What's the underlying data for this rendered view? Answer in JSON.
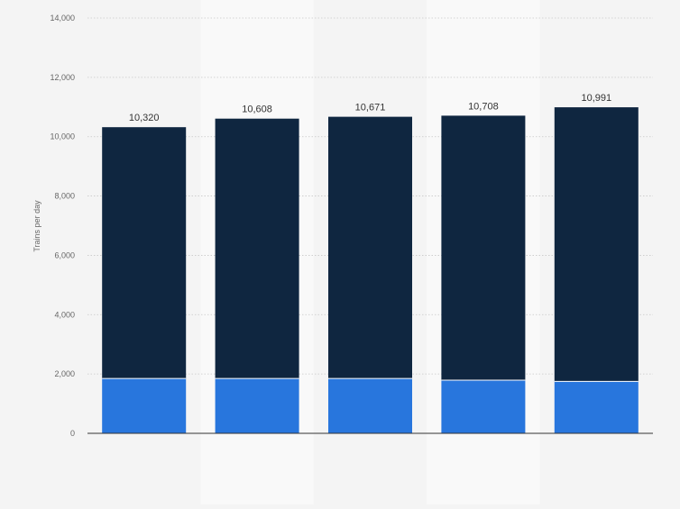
{
  "chart_data": {
    "type": "bar",
    "stacked": true,
    "title": "",
    "xlabel": "",
    "ylabel": "Trains per day",
    "ylim": [
      0,
      14000
    ],
    "yticks": [
      0,
      2000,
      4000,
      6000,
      8000,
      10000,
      12000,
      14000
    ],
    "ytick_labels": [
      "0",
      "2,000",
      "4,000",
      "6,000",
      "8,000",
      "10,000",
      "12,000",
      "14,000"
    ],
    "categories": [
      "",
      "",
      "",
      "",
      ""
    ],
    "series": [
      {
        "name": "",
        "color": "#2876dd",
        "values": [
          1850,
          1850,
          1850,
          1790,
          1750
        ]
      },
      {
        "name": "",
        "color": "#0f2640",
        "values": [
          8470,
          8758,
          8821,
          8918,
          9241
        ]
      }
    ],
    "totals": [
      10320,
      10608,
      10671,
      10708,
      10991
    ],
    "total_labels": [
      "10,320",
      "10,608",
      "10,671",
      "10,708",
      "10,991"
    ],
    "grid": true,
    "legend": "none",
    "colors": {
      "background": "#f4f4f4",
      "band": "#f9f9f9",
      "grid": "#c8c8c8",
      "axis": "#333333",
      "label": "#333333",
      "tick": "#666666"
    }
  }
}
